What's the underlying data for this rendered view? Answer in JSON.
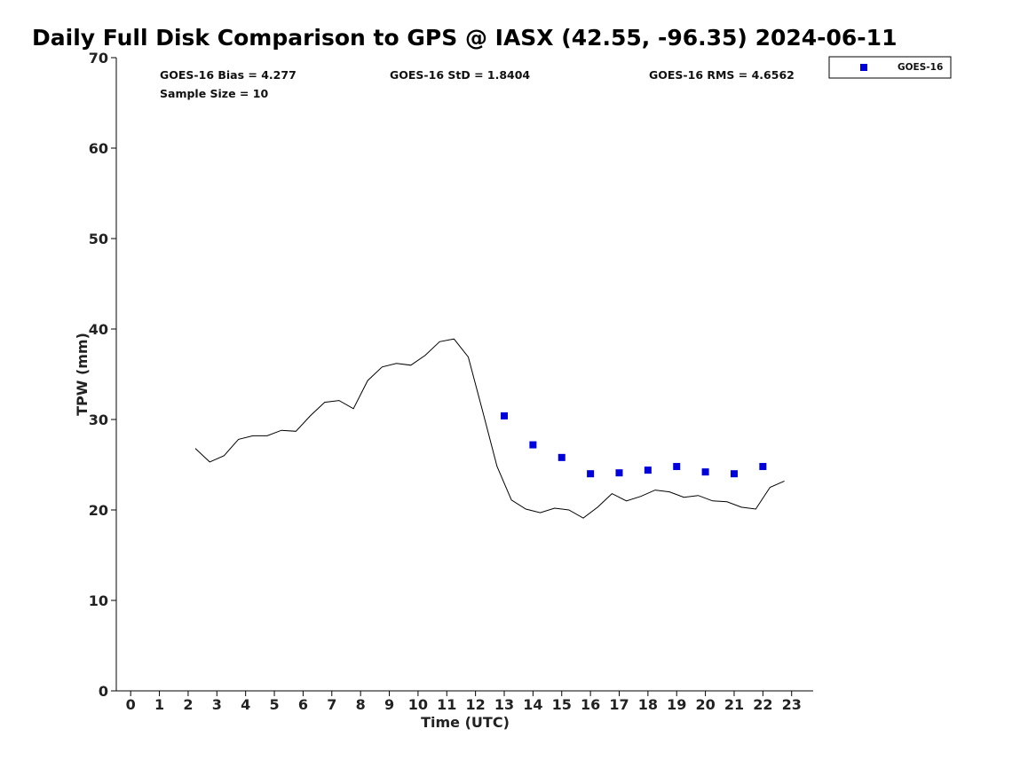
{
  "chart_data": {
    "type": "line",
    "title": "Daily Full Disk Comparison to GPS @ IASX (42.55, -96.35) 2024-06-11",
    "xlabel": "Time (UTC)",
    "ylabel": "TPW (mm)",
    "xlim": [
      -0.5,
      23.75
    ],
    "ylim": [
      0,
      70
    ],
    "xticks": [
      0,
      1,
      2,
      3,
      4,
      5,
      6,
      7,
      8,
      9,
      10,
      11,
      12,
      13,
      14,
      15,
      16,
      17,
      18,
      19,
      20,
      21,
      22,
      23
    ],
    "yticks": [
      0,
      10,
      20,
      30,
      40,
      50,
      60,
      70
    ],
    "grid": false,
    "legend_position": "top-right",
    "stats": {
      "bias": "GOES-16 Bias = 4.277",
      "std": "GOES-16 StD = 1.8404",
      "rms": "GOES-16 RMS = 4.6562",
      "sample_size": "Sample Size = 10"
    },
    "gps_line": {
      "color": "#000000",
      "x": [
        2.25,
        2.75,
        3.25,
        3.75,
        4.25,
        4.75,
        5.25,
        5.75,
        6.25,
        6.75,
        7.25,
        7.75,
        8.25,
        8.75,
        9.25,
        9.75,
        10.25,
        10.75,
        11.25,
        11.75,
        12.25,
        12.75,
        13.25,
        13.75,
        14.25,
        14.75,
        15.25,
        15.75,
        16.25,
        16.75,
        17.25,
        17.75,
        18.25,
        18.75,
        19.25,
        19.75,
        20.25,
        20.75,
        21.25,
        21.75,
        22.25,
        22.75
      ],
      "y": [
        26.8,
        25.3,
        26.0,
        27.8,
        28.2,
        28.2,
        28.8,
        28.7,
        30.4,
        31.9,
        32.1,
        31.2,
        34.3,
        35.8,
        36.2,
        36.0,
        37.1,
        38.6,
        38.9,
        36.9,
        30.9,
        24.8,
        21.1,
        20.1,
        19.7,
        20.2,
        20.0,
        19.1,
        20.3,
        21.8,
        21.0,
        21.5,
        22.2,
        22.0,
        21.4,
        21.6,
        21.0,
        20.9,
        20.3,
        20.1,
        22.5,
        23.2
      ]
    },
    "series": [
      {
        "name": "GOES-16",
        "color": "#0000dd",
        "marker": "square",
        "x": [
          13,
          14,
          15,
          16,
          17,
          18,
          19,
          20,
          21,
          22
        ],
        "y": [
          30.4,
          27.2,
          25.8,
          24.0,
          24.1,
          24.4,
          24.8,
          24.2,
          24.0,
          24.8
        ]
      }
    ]
  }
}
